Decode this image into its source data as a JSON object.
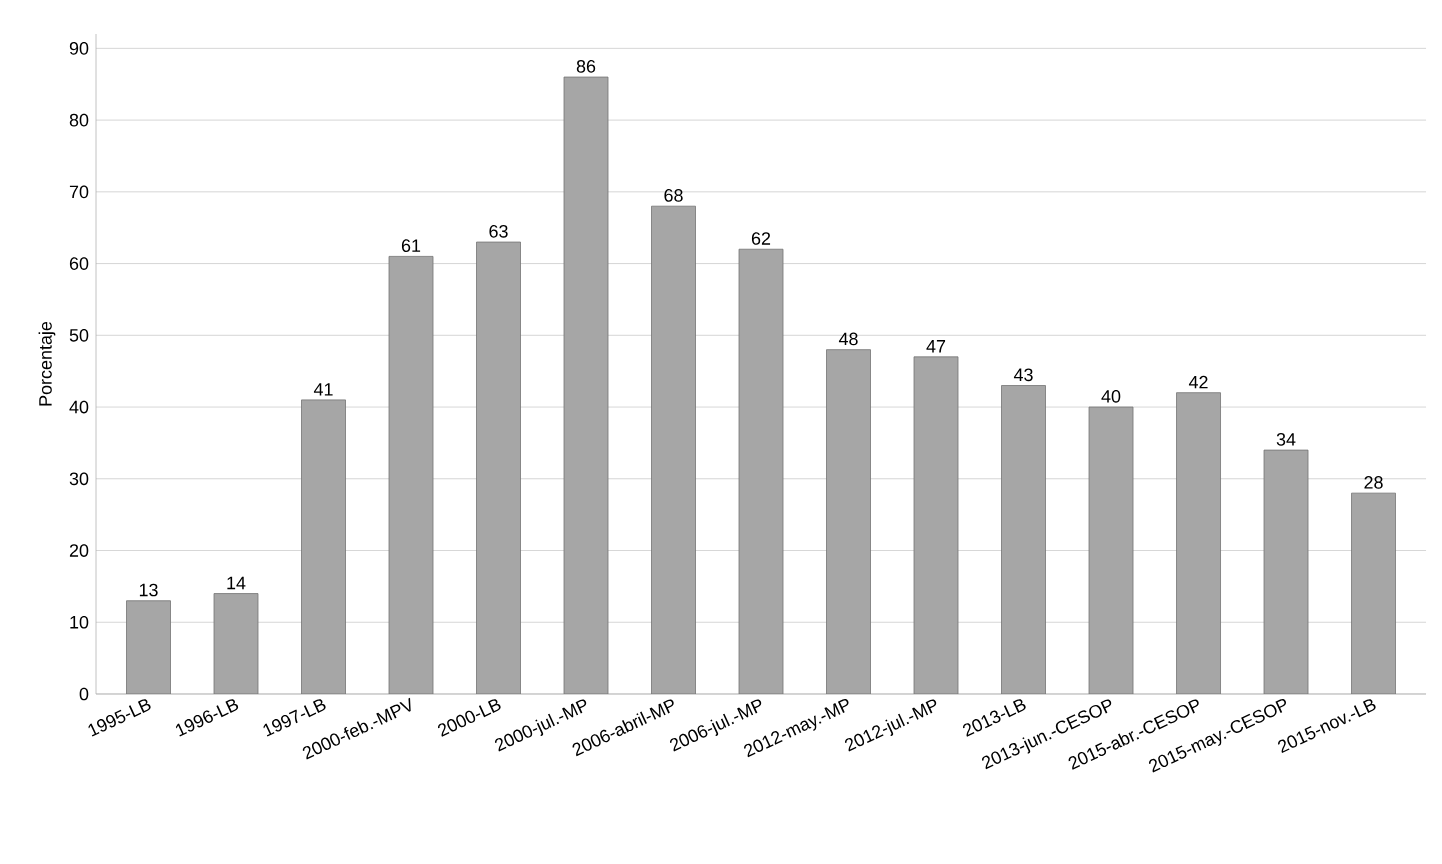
{
  "chart_data": {
    "type": "bar",
    "ylabel": "Porcentaje",
    "categories": [
      "1995-LB",
      "1996-LB",
      "1997-LB",
      "2000-feb.-MPV",
      "2000-LB",
      "2000-jul.-MP",
      "2006-abril-MP",
      "2006-jul.-MP",
      "2012-may.-MP",
      "2012-jul.-MP",
      "2013-LB",
      "2013-jun.-CESOP",
      "2015-abr.-CESOP",
      "2015-may.-CESOP",
      "2015-nov.-LB"
    ],
    "values": [
      13,
      14,
      41,
      61,
      63,
      86,
      68,
      62,
      48,
      47,
      43,
      40,
      42,
      34,
      28
    ],
    "color": "#a6a6a6",
    "ylim": [
      0,
      92
    ],
    "yticks": [
      0,
      10,
      20,
      30,
      40,
      50,
      60,
      70,
      80,
      90
    ],
    "grid": "y",
    "data_labels": true
  }
}
